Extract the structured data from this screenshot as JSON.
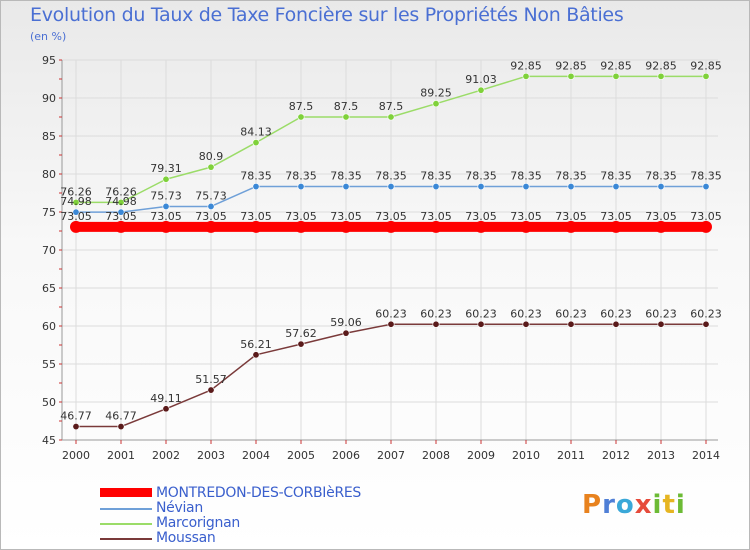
{
  "header": {
    "title": "Evolution du Taux de Taxe Foncière sur les Propriétés Non Bâties",
    "unit": "(en %)"
  },
  "brand": {
    "logo": "Proxiti"
  },
  "chart_data": {
    "type": "line",
    "title": "Evolution du Taux de Taxe Foncière sur les Propriétés Non Bâties",
    "ylabel": "(en %)",
    "xlabel": "",
    "ylim": [
      45,
      95
    ],
    "yticks": [
      45,
      50,
      55,
      60,
      65,
      70,
      75,
      80,
      85,
      90,
      95
    ],
    "grid": true,
    "legend_position": "bottom-left",
    "categories": [
      "2000",
      "2001",
      "2002",
      "2003",
      "2004",
      "2005",
      "2006",
      "2007",
      "2008",
      "2009",
      "2010",
      "2011",
      "2012",
      "2013",
      "2014"
    ],
    "series": [
      {
        "name": "MONTREDON-DES-CORBIèRES",
        "color": "#ff0000",
        "line_width": 10,
        "marker_color": "#ff0000",
        "values": [
          73.05,
          73.05,
          73.05,
          73.05,
          73.05,
          73.05,
          73.05,
          73.05,
          73.05,
          73.05,
          73.05,
          73.05,
          73.05,
          73.05,
          73.05
        ],
        "labels": [
          "73.05",
          "73.05",
          "73.05",
          "73.05",
          "73.05",
          "73.05",
          "73.05",
          "73.05",
          "73.05",
          "73.05",
          "73.05",
          "73.05",
          "73.05",
          "73.05",
          "73.05"
        ]
      },
      {
        "name": "Névian",
        "color": "#6fa0d8",
        "line_width": 1.5,
        "marker_color": "#3b88d6",
        "values": [
          74.98,
          74.98,
          75.73,
          75.73,
          78.35,
          78.35,
          78.35,
          78.35,
          78.35,
          78.35,
          78.35,
          78.35,
          78.35,
          78.35,
          78.35
        ],
        "labels": [
          "74.98",
          "74.98",
          "75.73",
          "75.73",
          "78.35",
          "78.35",
          "78.35",
          "78.35",
          "78.35",
          "78.35",
          "78.35",
          "78.35",
          "78.35",
          "78.35",
          "78.35"
        ]
      },
      {
        "name": "Marcorignan",
        "color": "#9bdc68",
        "line_width": 1.5,
        "marker_color": "#7fd13a",
        "values": [
          76.26,
          76.26,
          79.31,
          80.9,
          84.13,
          87.5,
          87.5,
          87.5,
          89.25,
          91.03,
          92.85,
          92.85,
          92.85,
          92.85,
          92.85
        ],
        "labels": [
          "76.26",
          "76.26",
          "79.31",
          "80.9",
          "84.13",
          "87.5",
          "87.5",
          "87.5",
          "89.25",
          "91.03",
          "92.85",
          "92.85",
          "92.85",
          "92.85",
          "92.85"
        ]
      },
      {
        "name": "Moussan",
        "color": "#7a3a3a",
        "line_width": 1.5,
        "marker_color": "#5a1a1a",
        "values": [
          46.77,
          46.77,
          49.11,
          51.57,
          56.21,
          57.62,
          59.06,
          60.23,
          60.23,
          60.23,
          60.23,
          60.23,
          60.23,
          60.23,
          60.23
        ],
        "labels": [
          "46.77",
          "46.77",
          "49.11",
          "51.57",
          "56.21",
          "57.62",
          "59.06",
          "60.23",
          "60.23",
          "60.23",
          "60.23",
          "60.23",
          "60.23",
          "60.23",
          "60.23"
        ]
      }
    ]
  }
}
